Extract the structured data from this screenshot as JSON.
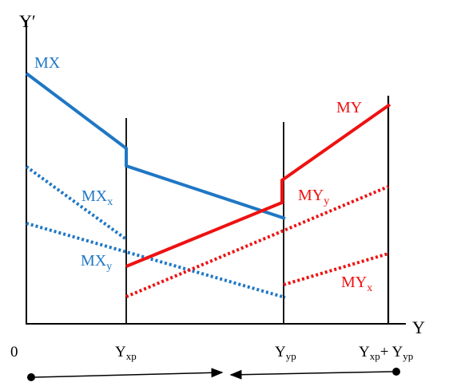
{
  "axes": {
    "y_label": "Y′",
    "x_label": "Y",
    "origin_label": "0"
  },
  "ticks": {
    "yxp": {
      "main": "Y",
      "sub": "xp"
    },
    "yyp": {
      "main": "Y",
      "sub": "yp"
    },
    "total": {
      "main1": "Y",
      "sub1": "xp",
      "plus": "+ ",
      "main2": "Y",
      "sub2": "yp"
    }
  },
  "curves": {
    "mx": {
      "main": "MX",
      "sub": ""
    },
    "mxx": {
      "main": "MX",
      "sub": "x"
    },
    "mxy": {
      "main": "MX",
      "sub": "y"
    },
    "my": {
      "main": "MY",
      "sub": ""
    },
    "myy": {
      "main": "MY",
      "sub": "y"
    },
    "myx": {
      "main": "MY",
      "sub": "x"
    }
  },
  "colors": {
    "blue": "#1f77c4",
    "red": "#ee1111",
    "axis": "#000000"
  }
}
